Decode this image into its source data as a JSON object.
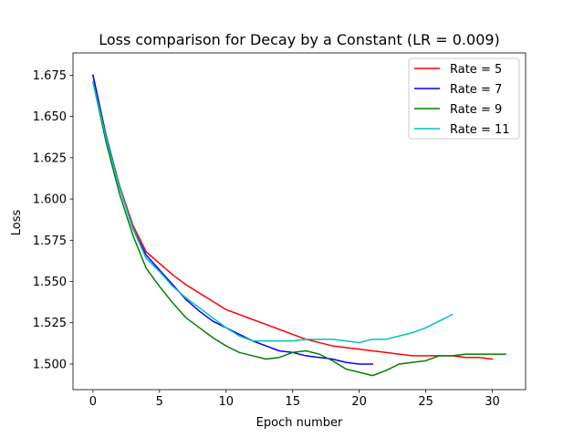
{
  "chart_data": {
    "type": "line",
    "title": "Loss comparison for Decay by a Constant (LR = 0.009)",
    "xlabel": "Epoch number",
    "ylabel": "Loss",
    "xlim": [
      -1.5,
      32.5
    ],
    "ylim": [
      1.4845,
      1.6885
    ],
    "xticks": [
      0,
      5,
      10,
      15,
      20,
      25,
      30
    ],
    "xtick_labels": [
      "0",
      "5",
      "10",
      "15",
      "20",
      "25",
      "30"
    ],
    "yticks": [
      1.5,
      1.525,
      1.55,
      1.575,
      1.6,
      1.625,
      1.65,
      1.675
    ],
    "ytick_labels": [
      "1.500",
      "1.525",
      "1.550",
      "1.575",
      "1.600",
      "1.625",
      "1.650",
      "1.675"
    ],
    "grid": false,
    "legend_position": "top-right",
    "series": [
      {
        "name": "Rate = 5",
        "color": "#ff0000",
        "x": [
          0,
          1,
          2,
          3,
          4,
          5,
          6,
          7,
          8,
          9,
          10,
          11,
          12,
          13,
          14,
          15,
          16,
          17,
          18,
          19,
          20,
          21,
          22,
          23,
          24,
          25,
          26,
          27,
          28,
          29,
          30
        ],
        "y": [
          1.675,
          1.638,
          1.608,
          1.584,
          1.568,
          1.561,
          1.554,
          1.548,
          1.543,
          1.538,
          1.533,
          1.53,
          1.527,
          1.524,
          1.521,
          1.518,
          1.515,
          1.513,
          1.511,
          1.51,
          1.509,
          1.508,
          1.507,
          1.506,
          1.505,
          1.505,
          1.505,
          1.505,
          1.504,
          1.504,
          1.503
        ]
      },
      {
        "name": "Rate = 7",
        "color": "#0000ff",
        "x": [
          0,
          1,
          2,
          3,
          4,
          5,
          6,
          7,
          8,
          9,
          10,
          11,
          12,
          13,
          14,
          15,
          16,
          17,
          18,
          19,
          20,
          21
        ],
        "y": [
          1.675,
          1.638,
          1.607,
          1.582,
          1.566,
          1.557,
          1.548,
          1.539,
          1.532,
          1.526,
          1.522,
          1.518,
          1.514,
          1.511,
          1.508,
          1.507,
          1.505,
          1.504,
          1.503,
          1.501,
          1.5,
          1.5
        ]
      },
      {
        "name": "Rate = 9",
        "color": "#008000",
        "x": [
          0,
          1,
          2,
          3,
          4,
          5,
          6,
          7,
          8,
          9,
          10,
          11,
          12,
          13,
          14,
          15,
          16,
          17,
          18,
          19,
          20,
          21,
          22,
          23,
          24,
          25,
          26,
          27,
          28,
          29,
          30,
          31
        ],
        "y": [
          1.671,
          1.634,
          1.603,
          1.578,
          1.558,
          1.547,
          1.537,
          1.528,
          1.522,
          1.516,
          1.511,
          1.507,
          1.505,
          1.503,
          1.504,
          1.507,
          1.508,
          1.506,
          1.502,
          1.497,
          1.495,
          1.493,
          1.496,
          1.5,
          1.501,
          1.502,
          1.505,
          1.505,
          1.506,
          1.506,
          1.506,
          1.506
        ]
      },
      {
        "name": "Rate = 11",
        "color": "#00bfbf",
        "x": [
          0,
          1,
          2,
          3,
          4,
          5,
          6,
          7,
          8,
          9,
          10,
          11,
          12,
          13,
          14,
          15,
          16,
          17,
          18,
          19,
          20,
          21,
          22,
          23,
          24,
          25,
          26,
          27
        ],
        "y": [
          1.671,
          1.637,
          1.607,
          1.582,
          1.564,
          1.556,
          1.547,
          1.54,
          1.534,
          1.528,
          1.522,
          1.517,
          1.514,
          1.514,
          1.514,
          1.514,
          1.515,
          1.515,
          1.515,
          1.514,
          1.513,
          1.515,
          1.515,
          1.517,
          1.519,
          1.522,
          1.526,
          1.53
        ]
      }
    ]
  }
}
